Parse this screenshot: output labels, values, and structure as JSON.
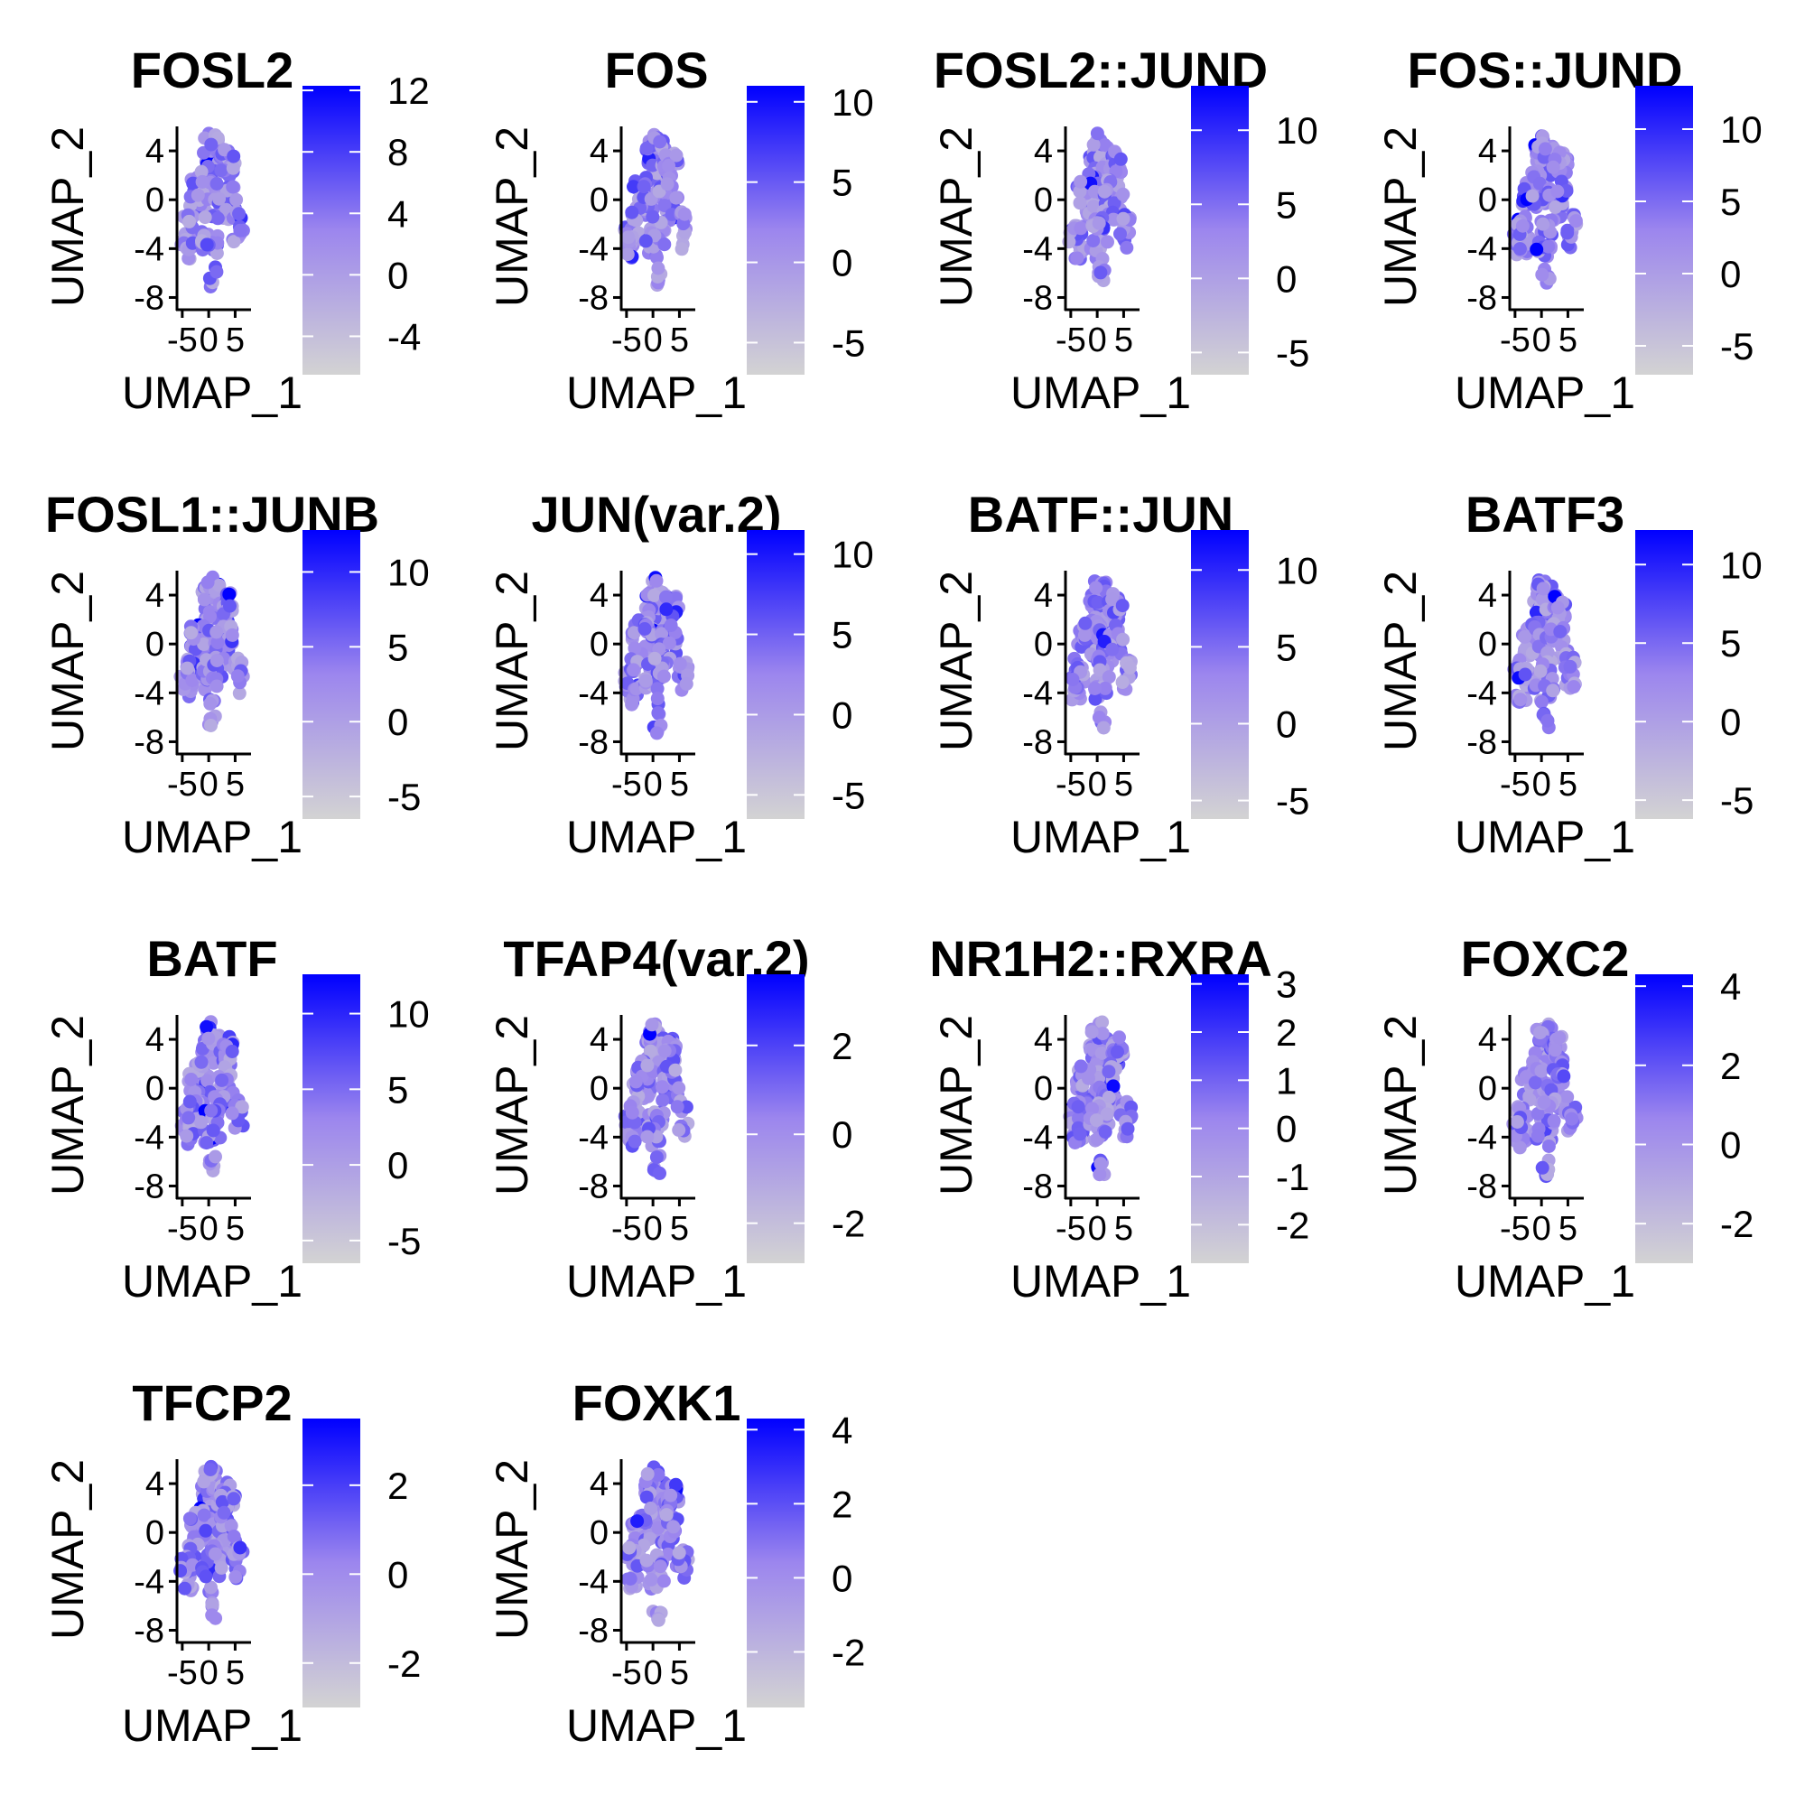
{
  "chart_data": {
    "type": "scatter",
    "layout": {
      "columns": 4,
      "rows": 4
    },
    "colors": {
      "low": "#d3d3d3",
      "high": "#0000ff"
    },
    "xlabel": "UMAP_1",
    "ylabel": "UMAP_2",
    "x_ticks": [
      "-5",
      "0",
      "5"
    ],
    "y_ticks": [
      "4",
      "0",
      "-4",
      "-8"
    ],
    "xlim": [
      -6,
      8
    ],
    "ylim": [
      -9,
      6
    ],
    "panels": [
      {
        "title": "FOSL2",
        "scale": [
          -6.5,
          12.3
        ],
        "legend_ticks": [
          -4,
          0,
          4,
          8,
          12
        ]
      },
      {
        "title": "FOS",
        "scale": [
          -7,
          11
        ],
        "legend_ticks": [
          -5,
          0,
          5,
          10
        ]
      },
      {
        "title": "FOSL2::JUND",
        "scale": [
          -6.5,
          13
        ],
        "legend_ticks": [
          -5,
          0,
          5,
          10
        ]
      },
      {
        "title": "FOS::JUND",
        "scale": [
          -7,
          13
        ],
        "legend_ticks": [
          -5,
          0,
          5,
          10
        ]
      },
      {
        "title": "FOSL1::JUNB",
        "scale": [
          -6.5,
          12.8
        ],
        "legend_ticks": [
          -5,
          0,
          5,
          10
        ]
      },
      {
        "title": "JUN(var.2)",
        "scale": [
          -6.5,
          11.5
        ],
        "legend_ticks": [
          -5,
          0,
          5,
          10
        ]
      },
      {
        "title": "BATF::JUN",
        "scale": [
          -6.2,
          12.6
        ],
        "legend_ticks": [
          -5,
          0,
          5,
          10
        ]
      },
      {
        "title": "BATF3",
        "scale": [
          -6.2,
          12.2
        ],
        "legend_ticks": [
          -5,
          0,
          5,
          10
        ]
      },
      {
        "title": "BATF",
        "scale": [
          -6.5,
          12.6
        ],
        "legend_ticks": [
          -5,
          0,
          5,
          10
        ]
      },
      {
        "title": "TFAP4(var.2)",
        "scale": [
          -2.9,
          3.6
        ],
        "legend_ticks": [
          -2,
          0,
          2
        ]
      },
      {
        "title": "NR1H2::RXRA",
        "scale": [
          -2.8,
          3.2
        ],
        "legend_ticks": [
          -2,
          -1,
          0,
          1,
          2,
          3
        ]
      },
      {
        "title": "FOXC2",
        "scale": [
          -3,
          4.3
        ],
        "legend_ticks": [
          -2,
          0,
          2,
          4
        ]
      },
      {
        "title": "TFCP2",
        "scale": [
          -3,
          3.5
        ],
        "legend_ticks": [
          -2,
          0,
          2
        ]
      },
      {
        "title": "FOXK1",
        "scale": [
          -3.5,
          4.3
        ],
        "legend_ticks": [
          -2,
          0,
          2,
          4
        ]
      }
    ]
  }
}
